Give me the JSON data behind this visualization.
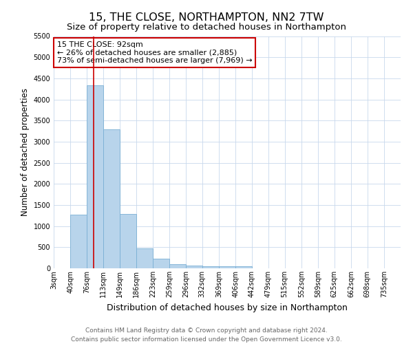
{
  "title": "15, THE CLOSE, NORTHAMPTON, NN2 7TW",
  "subtitle": "Size of property relative to detached houses in Northampton",
  "xlabel": "Distribution of detached houses by size in Northampton",
  "ylabel": "Number of detached properties",
  "bin_labels": [
    "3sqm",
    "40sqm",
    "76sqm",
    "113sqm",
    "149sqm",
    "186sqm",
    "223sqm",
    "259sqm",
    "296sqm",
    "332sqm",
    "369sqm",
    "406sqm",
    "442sqm",
    "479sqm",
    "515sqm",
    "552sqm",
    "589sqm",
    "625sqm",
    "662sqm",
    "698sqm",
    "735sqm"
  ],
  "bin_edges": [
    3,
    40,
    76,
    113,
    149,
    186,
    223,
    259,
    296,
    332,
    369,
    406,
    442,
    479,
    515,
    552,
    589,
    625,
    662,
    698,
    735
  ],
  "bar_values": [
    0,
    1270,
    4330,
    3290,
    1280,
    480,
    230,
    90,
    70,
    55,
    50,
    50,
    0,
    0,
    0,
    0,
    0,
    0,
    0,
    0
  ],
  "bar_color": "#b8d4eb",
  "bar_edge_color": "#7aafd4",
  "property_size": 92,
  "red_line_color": "#cc0000",
  "annotation_line1": "15 THE CLOSE: 92sqm",
  "annotation_line2": "← 26% of detached houses are smaller (2,885)",
  "annotation_line3": "73% of semi-detached houses are larger (7,969) →",
  "annotation_box_color": "#ffffff",
  "annotation_box_edge": "#cc0000",
  "ylim": [
    0,
    5500
  ],
  "yticks": [
    0,
    500,
    1000,
    1500,
    2000,
    2500,
    3000,
    3500,
    4000,
    4500,
    5000,
    5500
  ],
  "footer": "Contains HM Land Registry data © Crown copyright and database right 2024.\nContains public sector information licensed under the Open Government Licence v3.0.",
  "grid_color": "#c8d8ec",
  "background_color": "#ffffff",
  "title_fontsize": 11.5,
  "subtitle_fontsize": 9.5,
  "xlabel_fontsize": 9,
  "ylabel_fontsize": 8.5,
  "tick_fontsize": 7,
  "footer_fontsize": 6.5,
  "annotation_fontsize": 8
}
